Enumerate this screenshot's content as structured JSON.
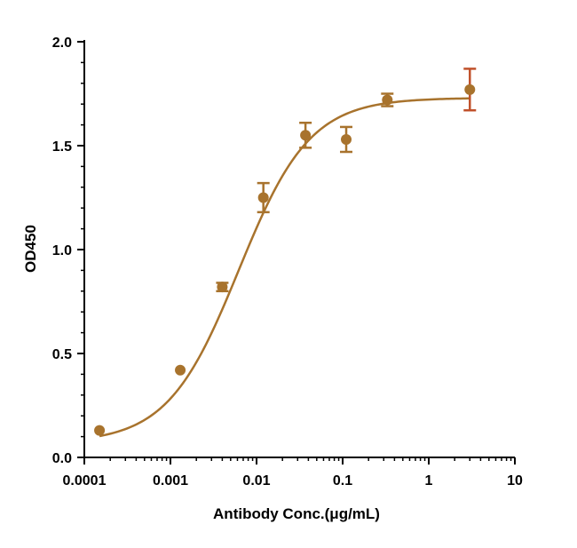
{
  "chart_data": {
    "type": "scatter",
    "xscale": "log",
    "xlabel": "Antibody Conc.(μg/mL)",
    "ylabel": "OD450",
    "xlim": [
      0.0001,
      10
    ],
    "ylim": [
      0,
      2.0
    ],
    "x_ticks": [
      "0.0001",
      "0.001",
      "0.01",
      "0.1",
      "1",
      "10"
    ],
    "y_ticks": [
      "0.0",
      "0.5",
      "1.0",
      "1.5",
      "2.0"
    ],
    "grid": false,
    "legend": "none",
    "colors": {
      "fit": "#a8732d",
      "points": "#a8732d",
      "last_error_bar": "#c0502a",
      "axis": "#000000"
    },
    "series": [
      {
        "x": [
          0.00015,
          0.0013,
          0.004,
          0.012,
          0.037,
          0.11,
          0.33,
          3.0
        ],
        "y": [
          0.13,
          0.42,
          0.82,
          1.25,
          1.55,
          1.53,
          1.72,
          1.77
        ],
        "error": [
          0.0,
          0.0,
          0.02,
          0.07,
          0.06,
          0.06,
          0.03,
          0.1
        ]
      }
    ],
    "fit": {
      "model": "4PL",
      "bottom": 0.07,
      "top": 1.73,
      "ec50": 0.0062,
      "hill": 1.05
    }
  }
}
